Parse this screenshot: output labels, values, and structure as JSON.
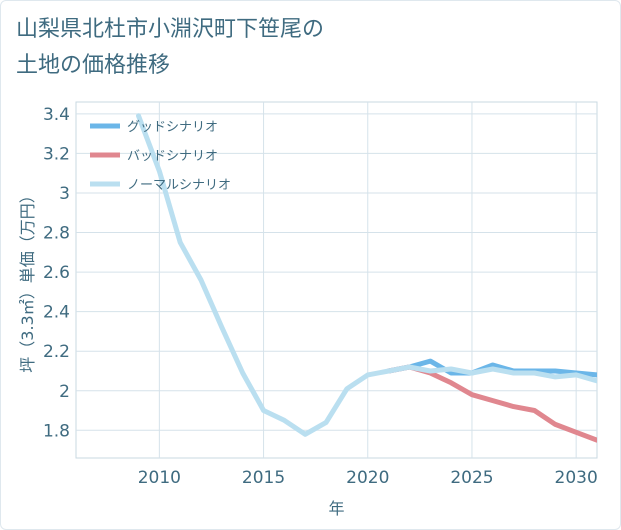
{
  "title": "山梨県北杜市小淵沢町下笹尾の\n土地の価格推移",
  "chart_data": {
    "type": "line",
    "title": "山梨県北杜市小淵沢町下笹尾の土地の価格推移",
    "xlabel": "年",
    "ylabel": "坪（3.3㎡）単価（万円）",
    "xlim": [
      2006,
      2031
    ],
    "ylim": [
      1.66,
      3.46
    ],
    "x_ticks": [
      2010,
      2015,
      2020,
      2025,
      2030
    ],
    "y_ticks": [
      1.8,
      2,
      2.2,
      2.4,
      2.6,
      2.8,
      3,
      3.2,
      3.4
    ],
    "y_tick_labels": [
      "1.8",
      "2",
      "2.2",
      "2.4",
      "2.6",
      "2.8",
      "3",
      "3.2",
      "3.4"
    ],
    "x_tick_labels": [
      "2010",
      "2015",
      "2020",
      "2025",
      "2030"
    ],
    "grid": true,
    "legend_position": "top-left",
    "series": [
      {
        "name": "グッドシナリオ",
        "color": "#6bb6e8",
        "x": [
          2021,
          2022,
          2023,
          2024,
          2025,
          2026,
          2027,
          2028,
          2029,
          2030,
          2031
        ],
        "y": [
          2.1,
          2.12,
          2.15,
          2.09,
          2.09,
          2.13,
          2.1,
          2.1,
          2.1,
          2.09,
          2.08
        ]
      },
      {
        "name": "バッドシナリオ",
        "color": "#e0878f",
        "x": [
          2021,
          2022,
          2023,
          2024,
          2025,
          2026,
          2027,
          2028,
          2029,
          2030,
          2031
        ],
        "y": [
          2.1,
          2.12,
          2.09,
          2.04,
          1.98,
          1.95,
          1.92,
          1.9,
          1.83,
          1.79,
          1.75
        ]
      },
      {
        "name": "ノーマルシナリオ",
        "color": "#badff0",
        "x": [
          2009,
          2010,
          2011,
          2012,
          2013,
          2014,
          2015,
          2016,
          2017,
          2018,
          2019,
          2020,
          2021,
          2022,
          2023,
          2024,
          2025,
          2026,
          2027,
          2028,
          2029,
          2030,
          2031
        ],
        "y": [
          3.39,
          3.11,
          2.75,
          2.56,
          2.32,
          2.09,
          1.9,
          1.85,
          1.78,
          1.84,
          2.01,
          2.08,
          2.1,
          2.12,
          2.1,
          2.11,
          2.09,
          2.11,
          2.09,
          2.09,
          2.07,
          2.08,
          2.05
        ]
      }
    ]
  }
}
